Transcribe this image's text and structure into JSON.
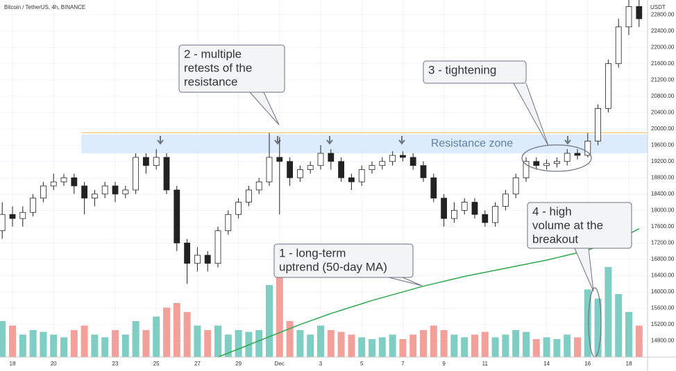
{
  "chart_data": {
    "type": "candlestick",
    "title": "Bitcoin / TetherUS, 4h, BINANCE",
    "y_unit": "USDT",
    "categories": [
      null,
      "18",
      null,
      null,
      null,
      "20",
      null,
      null,
      null,
      null,
      null,
      "23",
      null,
      null,
      null,
      "25",
      null,
      null,
      null,
      "27",
      null,
      null,
      null,
      "29",
      null,
      null,
      null,
      "Dec",
      null,
      null,
      null,
      "3",
      null,
      null,
      null,
      "5",
      null,
      null,
      null,
      "7",
      null,
      null,
      null,
      "9",
      null,
      null,
      null,
      "11",
      null,
      null,
      null,
      null,
      null,
      "14",
      null,
      null,
      null,
      "16",
      null,
      null,
      null,
      "18",
      null
    ],
    "open": [
      17500,
      17900,
      17800,
      17950,
      18300,
      18600,
      18700,
      18800,
      18600,
      18300,
      18400,
      18600,
      18400,
      18500,
      19300,
      19100,
      19300,
      18500,
      17200,
      16700,
      16900,
      16700,
      17500,
      17900,
      18200,
      18500,
      18700,
      19300,
      19200,
      18800,
      19000,
      19100,
      19400,
      19200,
      18800,
      18700,
      19000,
      19100,
      19200,
      19350,
      19300,
      19100,
      18800,
      18300,
      17800,
      18000,
      18200,
      17900,
      17700,
      18100,
      18400,
      18800,
      19200,
      19100,
      19150,
      19200,
      19400,
      19350,
      19700,
      20500,
      21600,
      22500,
      23000
    ],
    "high": [
      18200,
      18100,
      18100,
      18400,
      18700,
      18900,
      18900,
      18900,
      18700,
      18500,
      18700,
      18700,
      18600,
      19400,
      19400,
      19500,
      19400,
      18600,
      17300,
      17100,
      17000,
      17600,
      18000,
      18300,
      18600,
      18800,
      19900,
      19800,
      19300,
      19100,
      19200,
      19600,
      19500,
      19300,
      18900,
      19100,
      19200,
      19300,
      19450,
      19450,
      19400,
      19200,
      18900,
      18400,
      18200,
      18300,
      18300,
      18000,
      18200,
      18500,
      18900,
      19300,
      19300,
      19250,
      19300,
      19500,
      19500,
      19900,
      20600,
      21700,
      22700,
      23200,
      23200
    ],
    "low": [
      17300,
      17600,
      17600,
      17850,
      18200,
      18500,
      18600,
      18400,
      17900,
      18100,
      18300,
      18200,
      18300,
      18400,
      18900,
      19000,
      18400,
      17000,
      16200,
      16500,
      16500,
      16600,
      17400,
      17800,
      18100,
      18400,
      18600,
      17900,
      18600,
      18700,
      18900,
      19000,
      19000,
      18700,
      18500,
      18600,
      18900,
      19000,
      19100,
      19200,
      19000,
      18700,
      18200,
      17600,
      17700,
      17900,
      17800,
      17600,
      17600,
      18000,
      18300,
      18700,
      19000,
      19000,
      19050,
      19100,
      19250,
      19300,
      19600,
      20400,
      21500,
      22300,
      22500
    ],
    "close": [
      17900,
      17800,
      17950,
      18300,
      18600,
      18700,
      18800,
      18600,
      18300,
      18400,
      18600,
      18400,
      18500,
      19300,
      19100,
      19300,
      18500,
      17200,
      16700,
      16900,
      16700,
      17500,
      17900,
      18200,
      18500,
      18700,
      19300,
      19200,
      18800,
      19000,
      19100,
      19400,
      19200,
      18800,
      18700,
      19000,
      19100,
      19200,
      19350,
      19300,
      19100,
      18800,
      18300,
      17800,
      18000,
      18200,
      17900,
      17700,
      18100,
      18400,
      18800,
      19200,
      19100,
      19150,
      19200,
      19400,
      19350,
      19700,
      20500,
      21600,
      22500,
      23000,
      22700
    ],
    "volume": [
      40,
      35,
      25,
      30,
      28,
      25,
      22,
      30,
      35,
      25,
      22,
      30,
      25,
      40,
      30,
      45,
      55,
      60,
      50,
      35,
      30,
      35,
      25,
      30,
      28,
      30,
      80,
      95,
      40,
      30,
      25,
      35,
      30,
      28,
      25,
      22,
      20,
      22,
      25,
      20,
      25,
      30,
      35,
      30,
      25,
      22,
      25,
      28,
      22,
      25,
      30,
      28,
      20,
      22,
      20,
      25,
      22,
      75,
      65,
      100,
      70,
      50,
      35
    ],
    "volume_lim": [
      0,
      100
    ],
    "up_volume_color": "#7fcdc3",
    "down_volume_color": "#f3a09b",
    "ma": {
      "name": "50-day MA",
      "color": "#2ea84a",
      "values": [
        null,
        null,
        null,
        null,
        null,
        null,
        null,
        null,
        null,
        null,
        null,
        null,
        null,
        null,
        null,
        null,
        null,
        null,
        null,
        null,
        null,
        14400,
        14500,
        14600,
        14700,
        14800,
        14900,
        15000,
        15100,
        15200,
        15290,
        15380,
        15470,
        15550,
        15630,
        15710,
        15790,
        15860,
        15930,
        16000,
        16070,
        16140,
        16200,
        16260,
        16320,
        16380,
        16430,
        16480,
        16530,
        16580,
        16630,
        16680,
        16730,
        16780,
        16840,
        16900,
        16960,
        17030,
        17110,
        17200,
        17300,
        17420,
        17550
      ]
    },
    "ylim": [
      14400,
      23160
    ],
    "yticks": [
      {
        "value": 14800,
        "label": "14800.00"
      },
      {
        "value": 15200,
        "label": "15200.00"
      },
      {
        "value": 15600,
        "label": "15600.00"
      },
      {
        "value": 16000,
        "label": "16000.00"
      },
      {
        "value": 16400,
        "label": "16400.00"
      },
      {
        "value": 16800,
        "label": "16800.00"
      },
      {
        "value": 17200,
        "label": "17200.00"
      },
      {
        "value": 17600,
        "label": "17600.00"
      },
      {
        "value": 18000,
        "label": "18000.00"
      },
      {
        "value": 18400,
        "label": "18400.00"
      },
      {
        "value": 18800,
        "label": "18800.00"
      },
      {
        "value": 19200,
        "label": "19200.00"
      },
      {
        "value": 19600,
        "label": "19600.00"
      },
      {
        "value": 20000,
        "label": "20000.00"
      },
      {
        "value": 20400,
        "label": "20400.00"
      },
      {
        "value": 20800,
        "label": "20800.00"
      },
      {
        "value": 21200,
        "label": "21200.00"
      },
      {
        "value": 21600,
        "label": "21600.00"
      },
      {
        "value": 22000,
        "label": "22000.00"
      },
      {
        "value": 22400,
        "label": "22400.00"
      },
      {
        "value": 22800,
        "label": "22800.00"
      }
    ],
    "grid": true,
    "resistance_zone": {
      "label": "Resistance zone",
      "range": [
        19400,
        19860
      ],
      "line": 19900
    },
    "annotations": [
      {
        "lines": [
          "1 - long-term",
          "uptrend (50-day MA)"
        ]
      },
      {
        "lines": [
          "2 - multiple",
          "retests of the",
          "resistance"
        ]
      },
      {
        "lines": [
          "3 - tightening"
        ]
      },
      {
        "lines": [
          "4 - high",
          "volume at the",
          "breakout"
        ]
      }
    ]
  }
}
